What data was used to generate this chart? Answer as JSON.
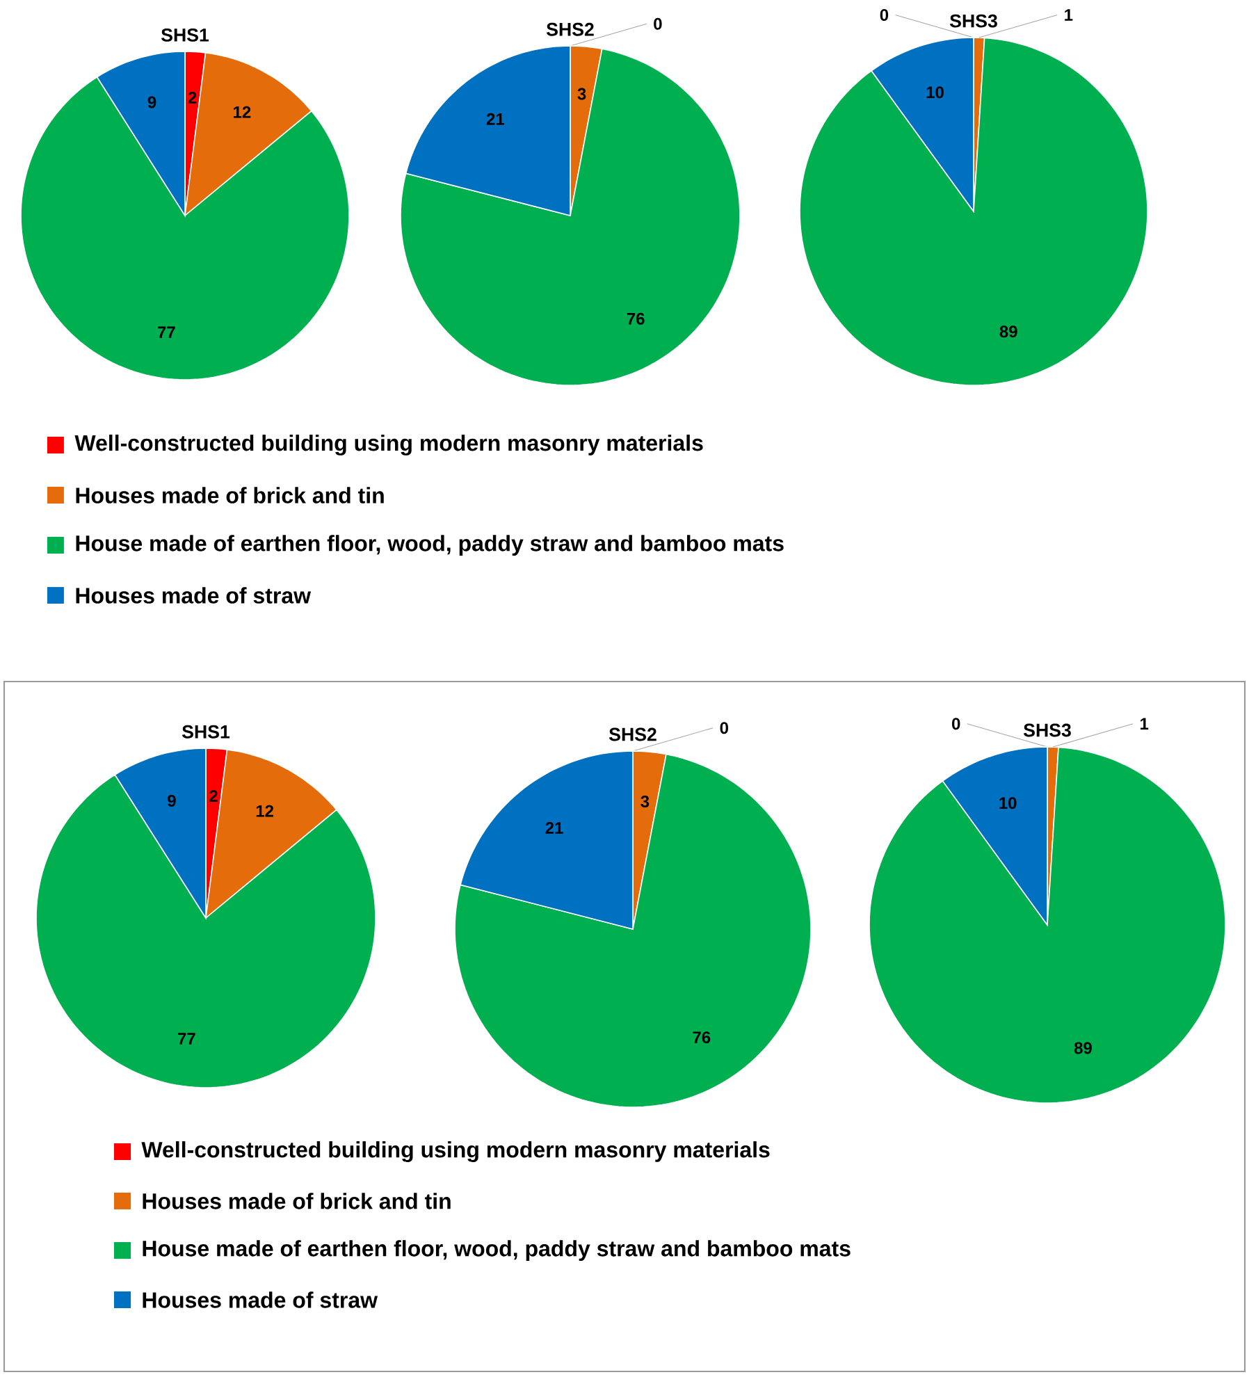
{
  "chart_data": [
    {
      "type": "pie",
      "title": "SHS1",
      "categories": [
        null,
        null,
        null,
        null
      ],
      "values": [
        2,
        12,
        77,
        9
      ],
      "colors": [
        "#ff0000",
        "#e46c0a",
        "#00b050",
        "#0070c0"
      ],
      "value_labels": [
        "2",
        "12",
        "77",
        "9"
      ]
    },
    {
      "type": "pie",
      "title": "SHS2",
      "categories": [
        "Well-constructed building using modern masonry materials",
        "Houses made of brick and tin",
        "House made of earthen floor, wood, paddy straw and bamboo mats",
        "Houses made of straw"
      ],
      "values": [
        0,
        3,
        76,
        21
      ],
      "colors": [
        "#ff0000",
        "#e46c0a",
        "#00b050",
        "#0070c0"
      ],
      "value_labels": [
        "0",
        "3",
        "76",
        "21"
      ],
      "legend": "bottom"
    },
    {
      "type": "pie",
      "title": "SHS3",
      "categories": [
        null,
        null,
        null,
        null
      ],
      "values": [
        0,
        1,
        89,
        10
      ],
      "colors": [
        "#ff0000",
        "#e46c0a",
        "#00b050",
        "#0070c0"
      ],
      "value_labels": [
        "0",
        "1",
        "89",
        "10"
      ]
    },
    {
      "type": "pie",
      "title": "SHS1",
      "categories": [
        null,
        null,
        null,
        null
      ],
      "values": [
        2,
        12,
        77,
        9
      ],
      "colors": [
        "#ff0000",
        "#e46c0a",
        "#00b050",
        "#0070c0"
      ],
      "value_labels": [
        "2",
        "12",
        "77",
        "9"
      ]
    },
    {
      "type": "pie",
      "title": "SHS2",
      "categories": [
        "Well-constructed building using modern masonry materials",
        "Houses made of brick and tin",
        "House made of earthen floor, wood, paddy straw and bamboo mats",
        "Houses made of straw"
      ],
      "values": [
        0,
        3,
        76,
        21
      ],
      "colors": [
        "#ff0000",
        "#e46c0a",
        "#00b050",
        "#0070c0"
      ],
      "value_labels": [
        "0",
        "3",
        "76",
        "21"
      ],
      "legend": "bottom"
    },
    {
      "type": "pie",
      "title": "SHS3",
      "categories": [
        null,
        null,
        null,
        null
      ],
      "values": [
        0,
        1,
        89,
        10
      ],
      "colors": [
        "#ff0000",
        "#e46c0a",
        "#00b050",
        "#0070c0"
      ],
      "value_labels": [
        "0",
        "1",
        "89",
        "10"
      ]
    }
  ]
}
